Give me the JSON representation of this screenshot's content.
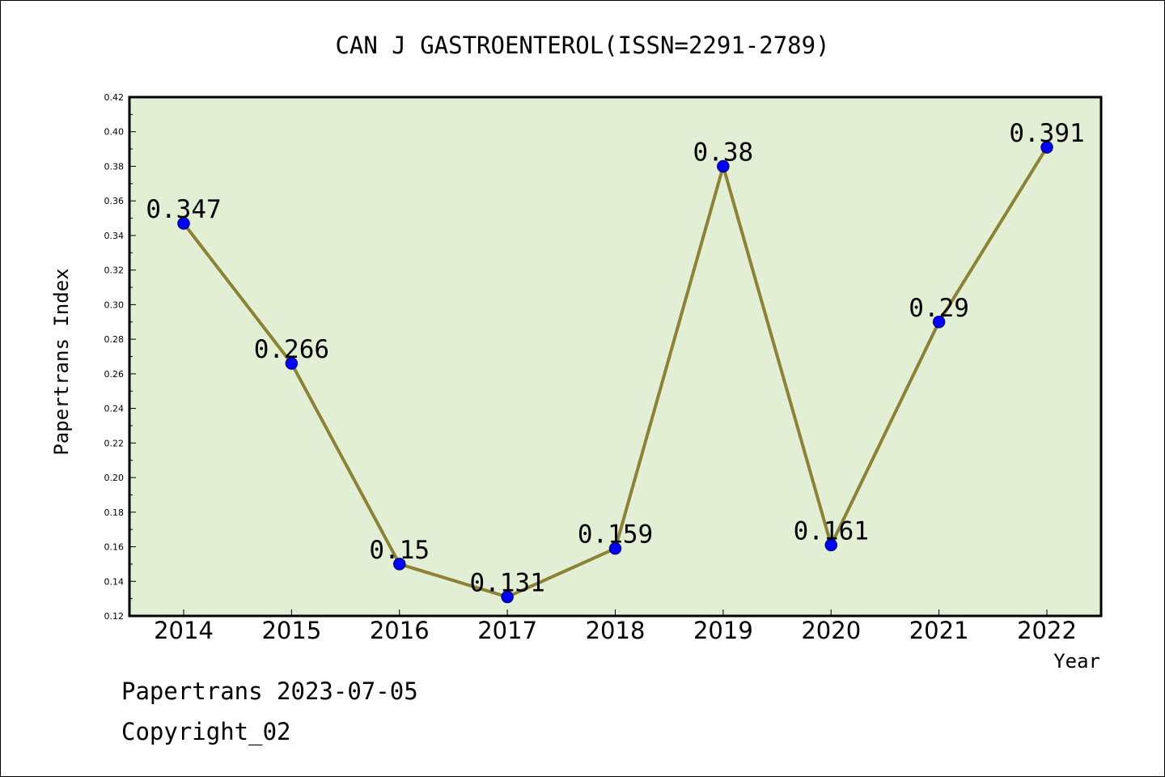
{
  "chart_data": {
    "type": "line",
    "title": "CAN J GASTROENTEROL(ISSN=2291-2789)",
    "xlabel": "Year",
    "ylabel": "Papertrans Index",
    "categories": [
      "2014",
      "2015",
      "2016",
      "2017",
      "2018",
      "2019",
      "2020",
      "2021",
      "2022"
    ],
    "series": [
      {
        "values": [
          0.347,
          0.266,
          0.15,
          0.131,
          0.159,
          0.38,
          0.161,
          0.29,
          0.391
        ],
        "data_labels": [
          "0.347",
          "0.266",
          "0.15",
          "0.131",
          "0.159",
          "0.38",
          "0.161",
          "0.29",
          "0.391"
        ]
      }
    ],
    "ylim": [
      0.12,
      0.42
    ],
    "yticks": [
      "0.12",
      "0.14",
      "0.16",
      "0.18",
      "0.20",
      "0.22",
      "0.24",
      "0.26",
      "0.28",
      "0.30",
      "0.32",
      "0.34",
      "0.36",
      "0.38",
      "0.40",
      "0.42"
    ],
    "grid": false,
    "legend": "none",
    "colors": {
      "plot_background": "#e2efd4",
      "line": "#8b8235",
      "marker_fill": "#0000ff",
      "marker_stroke": "#00008b",
      "frame": "#000000"
    }
  },
  "footer": {
    "line1": "Papertrans 2023-07-05",
    "line2": "Copyright_02"
  }
}
